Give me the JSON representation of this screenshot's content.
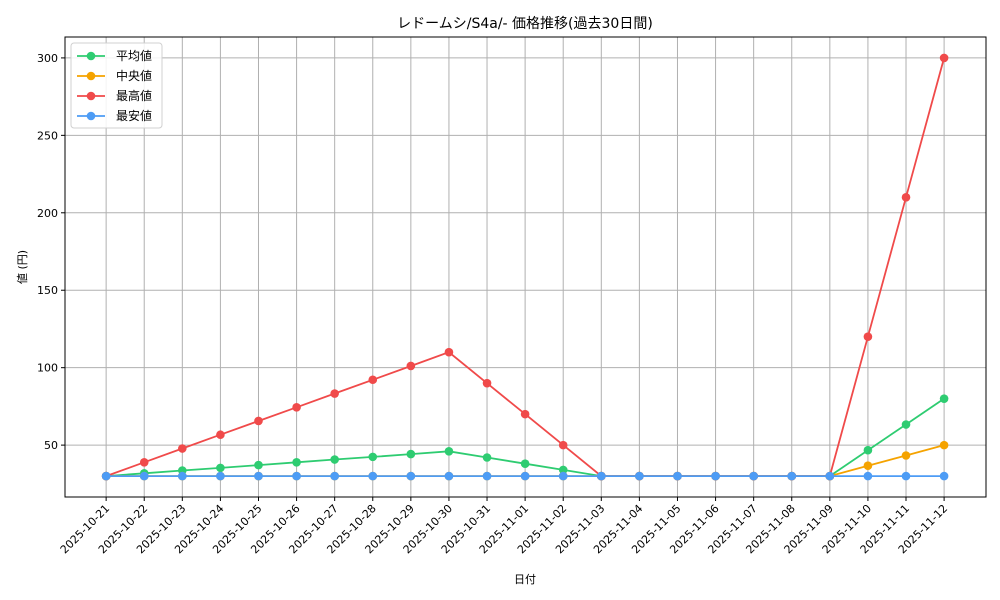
{
  "chart_data": {
    "type": "line",
    "title": "レドームシ/S4a/- 価格推移(過去30日間)",
    "xlabel": "日付",
    "ylabel": "値 (円)",
    "categories": [
      "2025-10-21",
      "2025-10-22",
      "2025-10-23",
      "2025-10-24",
      "2025-10-25",
      "2025-10-26",
      "2025-10-27",
      "2025-10-28",
      "2025-10-29",
      "2025-10-30",
      "2025-10-31",
      "2025-11-01",
      "2025-11-02",
      "2025-11-03",
      "2025-11-04",
      "2025-11-05",
      "2025-11-06",
      "2025-11-07",
      "2025-11-08",
      "2025-11-09",
      "2025-11-10",
      "2025-11-11",
      "2025-11-12"
    ],
    "series": [
      {
        "name": "平均値",
        "color": "#2ecc71",
        "values": [
          30,
          31.8,
          33.6,
          35.3,
          37.1,
          38.9,
          40.7,
          42.4,
          44.2,
          46,
          42,
          38,
          34,
          30,
          30,
          30,
          30,
          30,
          30,
          30,
          46.7,
          63.3,
          80
        ]
      },
      {
        "name": "中央値",
        "color": "#f5a300",
        "values": [
          30,
          30,
          30,
          30,
          30,
          30,
          30,
          30,
          30,
          30,
          30,
          30,
          30,
          30,
          30,
          30,
          30,
          30,
          30,
          30,
          36.7,
          43.3,
          50
        ]
      },
      {
        "name": "最高値",
        "color": "#f04a4a",
        "values": [
          30,
          38.9,
          47.8,
          56.7,
          65.6,
          74.4,
          83.3,
          92.2,
          101.1,
          110,
          90,
          70,
          50,
          30,
          30,
          30,
          30,
          30,
          30,
          30,
          120,
          210,
          300
        ]
      },
      {
        "name": "最安値",
        "color": "#4d9cf5",
        "values": [
          30,
          30,
          30,
          30,
          30,
          30,
          30,
          30,
          30,
          30,
          30,
          30,
          30,
          30,
          30,
          30,
          30,
          30,
          30,
          30,
          30,
          30,
          30
        ]
      }
    ],
    "yticks": [
      50,
      100,
      150,
      200,
      250,
      300
    ],
    "ylim": [
      16.5,
      313.5
    ],
    "xlim": [
      -1.08,
      23.1
    ],
    "grid": true,
    "legend_position": "upper left"
  }
}
